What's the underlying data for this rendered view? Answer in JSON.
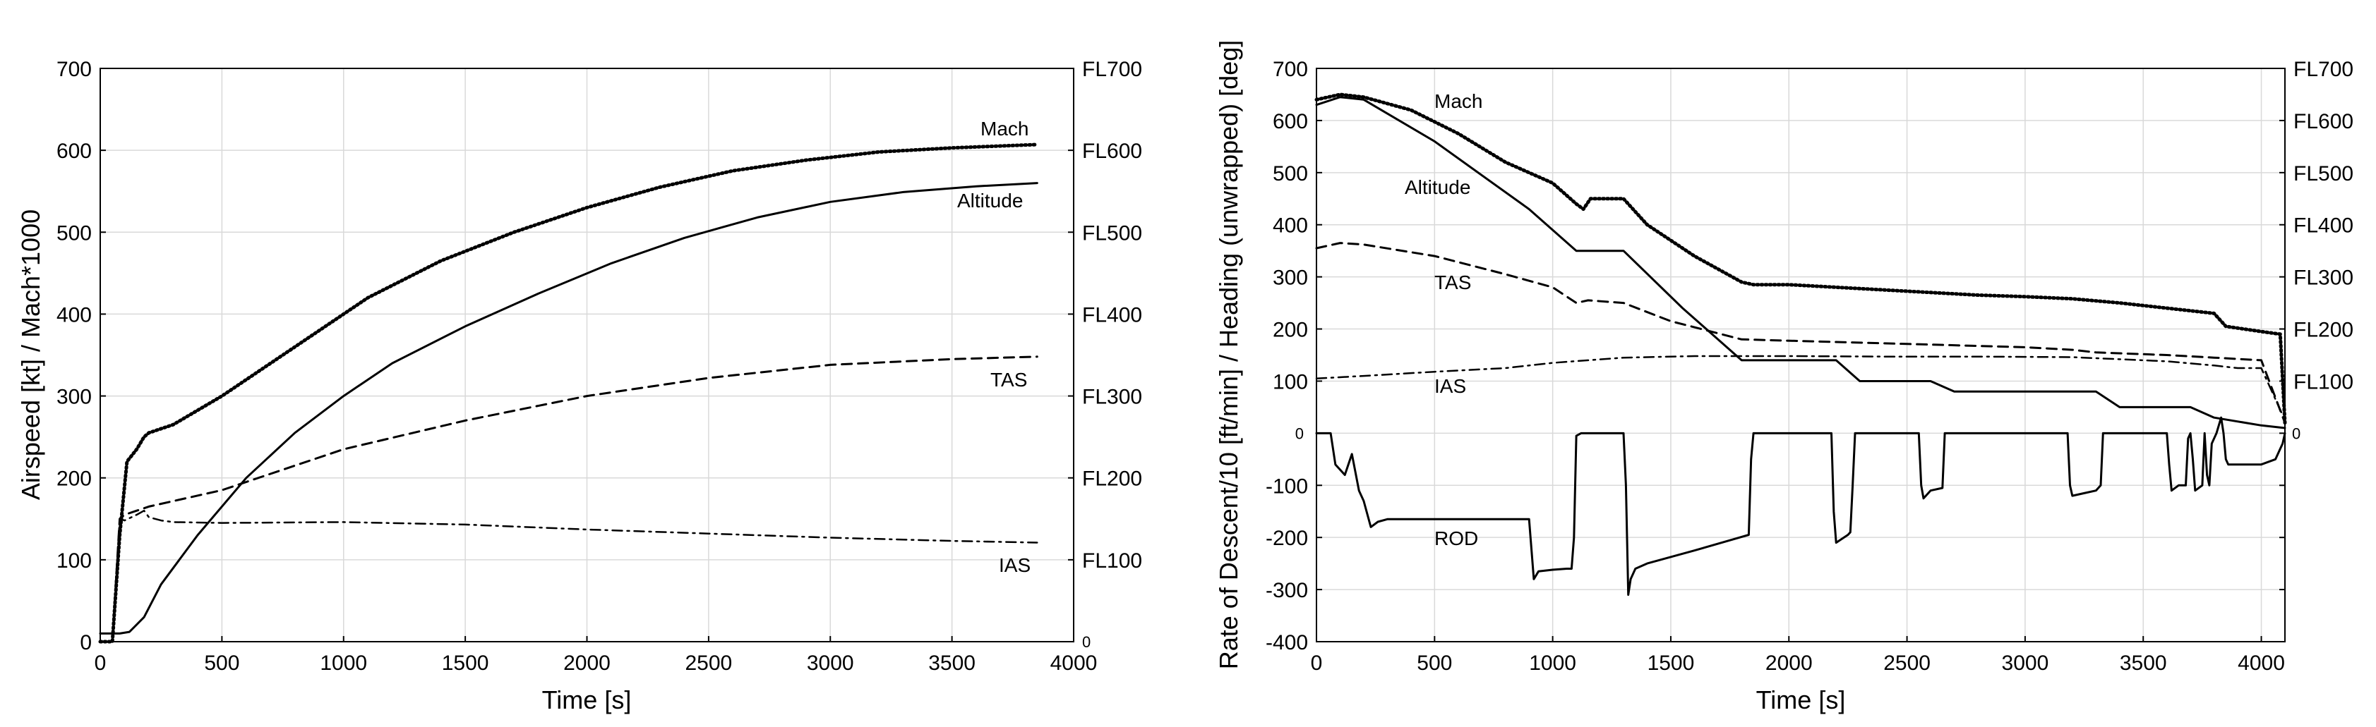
{
  "chart_data": [
    {
      "type": "line",
      "title": "",
      "xlabel": "Time [s]",
      "ylabel": "Airspeed [kt] / Mach*1000",
      "xlim": [
        0,
        4000
      ],
      "ylim": [
        0,
        700
      ],
      "xticks": [
        "0",
        "500",
        "1000",
        "1500",
        "2000",
        "2500",
        "3000",
        "3500",
        "4000"
      ],
      "yticks": [
        "0",
        "100",
        "200",
        "300",
        "400",
        "500",
        "600",
        "700"
      ],
      "y2ticks": [
        "0",
        "FL100",
        "FL200",
        "FL300",
        "FL400",
        "FL500",
        "FL600",
        "FL700"
      ],
      "grid": true,
      "series": [
        {
          "name": "Mach",
          "style": "dotted",
          "x": [
            0,
            50,
            80,
            110,
            150,
            180,
            200,
            300,
            500,
            800,
            1100,
            1400,
            1700,
            2000,
            2300,
            2600,
            2900,
            3200,
            3500,
            3850
          ],
          "y": [
            0,
            0,
            130,
            220,
            235,
            250,
            255,
            265,
            300,
            360,
            420,
            465,
            500,
            530,
            555,
            575,
            588,
            598,
            603,
            607
          ]
        },
        {
          "name": "Altitude",
          "style": "solid",
          "x": [
            0,
            50,
            80,
            120,
            180,
            250,
            400,
            600,
            800,
            1000,
            1200,
            1500,
            1800,
            2100,
            2400,
            2700,
            3000,
            3300,
            3600,
            3850
          ],
          "y": [
            10,
            10,
            10,
            12,
            30,
            70,
            130,
            200,
            255,
            300,
            340,
            385,
            425,
            462,
            493,
            518,
            537,
            549,
            556,
            560
          ]
        },
        {
          "name": "TAS",
          "style": "dashed",
          "x": [
            0,
            50,
            80,
            100,
            150,
            200,
            500,
            1000,
            1500,
            2000,
            2500,
            3000,
            3500,
            3850
          ],
          "y": [
            0,
            0,
            150,
            155,
            160,
            165,
            185,
            235,
            270,
            300,
            322,
            338,
            345,
            348
          ]
        },
        {
          "name": "IAS",
          "style": "dashdot",
          "x": [
            0,
            50,
            80,
            100,
            150,
            180,
            200,
            250,
            300,
            500,
            1000,
            1500,
            2000,
            2500,
            3000,
            3500,
            3850
          ],
          "y": [
            0,
            0,
            150,
            148,
            155,
            160,
            152,
            148,
            146,
            145,
            146,
            143,
            137,
            132,
            127,
            123,
            121
          ]
        }
      ],
      "annotations": [
        "Mach",
        "Altitude",
        "TAS",
        "IAS"
      ]
    },
    {
      "type": "line",
      "title": "",
      "xlabel": "Time [s]",
      "ylabel": "Rate of Descent/10 [ft/min] / Heading (unwrapped) [deg]",
      "xlim": [
        0,
        4100
      ],
      "ylim": [
        -400,
        700
      ],
      "xticks": [
        "0",
        "500",
        "1000",
        "1500",
        "2000",
        "2500",
        "3000",
        "3500",
        "4000"
      ],
      "yticks": [
        "-400",
        "-300",
        "-200",
        "-100",
        "0",
        "100",
        "200",
        "300",
        "400",
        "500",
        "600",
        "700"
      ],
      "y2ticks": [
        "FL100",
        "FL200",
        "FL300",
        "FL400",
        "FL500",
        "FL600",
        "FL700"
      ],
      "left_zero_label": "0",
      "right_zero_label": "0",
      "grid": true,
      "series": [
        {
          "name": "Mach",
          "style": "dotted",
          "x": [
            0,
            100,
            200,
            400,
            600,
            800,
            1000,
            1100,
            1130,
            1160,
            1300,
            1400,
            1600,
            1800,
            1850,
            2000,
            2200,
            2400,
            2600,
            2800,
            3000,
            3200,
            3400,
            3600,
            3800,
            3850,
            4000,
            4080,
            4100
          ],
          "y": [
            640,
            650,
            645,
            620,
            575,
            520,
            480,
            440,
            430,
            450,
            450,
            400,
            340,
            290,
            285,
            285,
            280,
            275,
            270,
            265,
            262,
            258,
            250,
            240,
            230,
            205,
            195,
            190,
            20
          ]
        },
        {
          "name": "Altitude",
          "style": "solid",
          "x": [
            0,
            100,
            200,
            500,
            900,
            1100,
            1300,
            1550,
            1800,
            2000,
            2200,
            2300,
            2600,
            2700,
            3300,
            3400,
            3700,
            3800,
            4000,
            4100
          ],
          "y": [
            630,
            645,
            640,
            560,
            430,
            350,
            350,
            240,
            140,
            140,
            140,
            100,
            100,
            80,
            80,
            50,
            50,
            30,
            15,
            10
          ]
        },
        {
          "name": "TAS",
          "style": "dashed",
          "x": [
            0,
            100,
            200,
            500,
            800,
            1000,
            1100,
            1150,
            1300,
            1500,
            1800,
            2200,
            2600,
            3000,
            3200,
            3300,
            3600,
            3800,
            4000,
            4100
          ],
          "y": [
            355,
            365,
            362,
            340,
            305,
            280,
            250,
            255,
            250,
            215,
            180,
            175,
            170,
            165,
            160,
            155,
            150,
            145,
            140,
            20
          ]
        },
        {
          "name": "IAS",
          "style": "dashdot",
          "x": [
            0,
            200,
            500,
            800,
            1000,
            1300,
            1600,
            2000,
            2400,
            2800,
            3200,
            3600,
            3800,
            3900,
            4000,
            4100
          ],
          "y": [
            105,
            110,
            118,
            125,
            135,
            145,
            148,
            148,
            147,
            147,
            146,
            138,
            130,
            125,
            125,
            25
          ]
        },
        {
          "name": "ROD",
          "style": "solid",
          "x": [
            0,
            60,
            80,
            120,
            150,
            180,
            200,
            230,
            260,
            300,
            400,
            700,
            900,
            920,
            940,
            1000,
            1060,
            1080,
            1090,
            1100,
            1120,
            1140,
            1150,
            1300,
            1310,
            1320,
            1330,
            1350,
            1400,
            1600,
            1830,
            1840,
            1850,
            2180,
            2190,
            2200,
            2250,
            2260,
            2270,
            2280,
            2550,
            2560,
            2570,
            2600,
            2650,
            2660,
            3180,
            3190,
            3200,
            3250,
            3300,
            3320,
            3330,
            3600,
            3610,
            3620,
            3650,
            3680,
            3690,
            3700,
            3710,
            3720,
            3750,
            3760,
            3770,
            3780,
            3790,
            3810,
            3830,
            3840,
            3850,
            3860,
            4000,
            4060,
            4080,
            4090,
            4100
          ],
          "y": [
            0,
            0,
            -60,
            -80,
            -40,
            -110,
            -130,
            -180,
            -170,
            -165,
            -165,
            -165,
            -165,
            -280,
            -265,
            -262,
            -260,
            -260,
            -200,
            -5,
            0,
            0,
            0,
            0,
            -100,
            -310,
            -280,
            -260,
            -250,
            -225,
            -195,
            -50,
            0,
            0,
            -150,
            -210,
            -195,
            -190,
            -100,
            0,
            0,
            -100,
            -125,
            -110,
            -105,
            0,
            0,
            -100,
            -120,
            -115,
            -110,
            -100,
            0,
            0,
            -60,
            -110,
            -100,
            -100,
            -10,
            0,
            -50,
            -110,
            -100,
            0,
            -80,
            -100,
            -20,
            0,
            30,
            0,
            -50,
            -60,
            -60,
            -50,
            -30,
            -20,
            0
          ]
        }
      ],
      "annotations": [
        "Mach",
        "Altitude",
        "TAS",
        "IAS",
        "ROD"
      ]
    }
  ]
}
